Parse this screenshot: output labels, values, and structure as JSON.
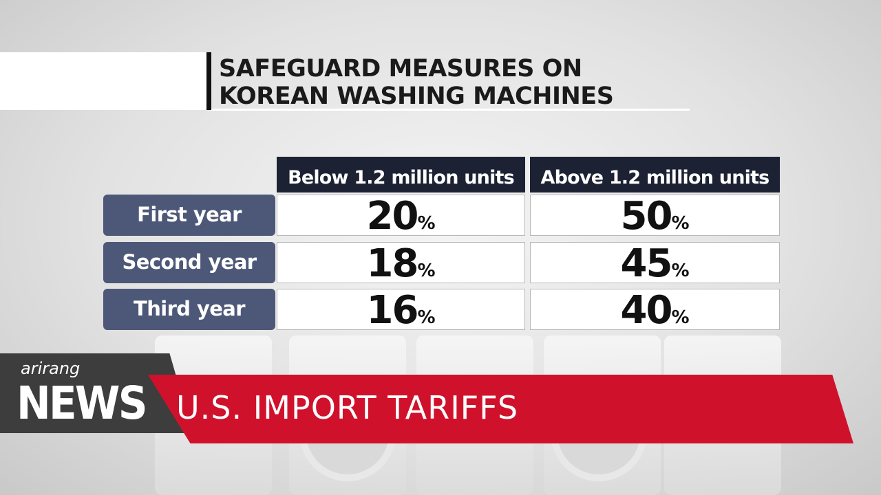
{
  "header": {
    "title_lines": [
      "SAFEGUARD MEASURES ON",
      "KOREAN WASHING MACHINES"
    ]
  },
  "table": {
    "columns": [
      "Below 1.2 million units",
      "Above 1.2 million units"
    ],
    "rows": [
      {
        "label": "First year",
        "cells": [
          {
            "number": "20",
            "unit": "%"
          },
          {
            "number": "50",
            "unit": "%"
          }
        ]
      },
      {
        "label": "Second year",
        "cells": [
          {
            "number": "18",
            "unit": "%"
          },
          {
            "number": "45",
            "unit": "%"
          }
        ]
      },
      {
        "label": "Third year",
        "cells": [
          {
            "number": "16",
            "unit": "%"
          },
          {
            "number": "40",
            "unit": "%"
          }
        ]
      }
    ]
  },
  "banner": {
    "logo": "arirang",
    "program": "NEWS",
    "headline": "U.S. IMPORT TARIFFS"
  }
}
